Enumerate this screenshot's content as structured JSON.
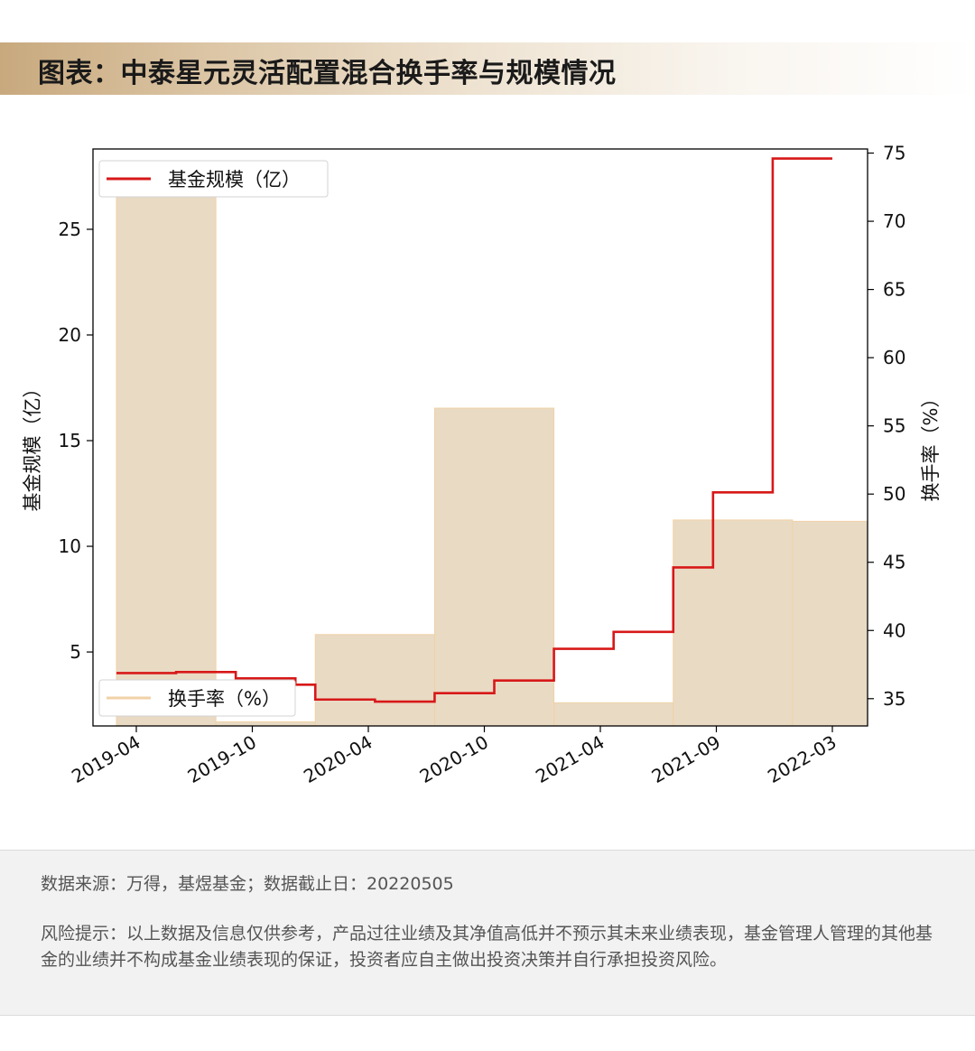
{
  "title": "图表：中泰星元灵活配置混合换手率与规模情况",
  "colors": {
    "scale_line": "#d71818",
    "turnover_fill": "#e9dac4",
    "turnover_edge": "#f0d2a6",
    "title_accent": "#c8a97e"
  },
  "chart_data": {
    "type": "bar+line",
    "x_tick_labels": [
      "2019-04",
      "2019-10",
      "2020-04",
      "2020-10",
      "2021-04",
      "2021-09",
      "2022-03"
    ],
    "left_axis": {
      "label": "基金规模（亿）",
      "ticks": [
        5,
        10,
        15,
        20,
        25
      ],
      "range": [
        1.5,
        28.8
      ]
    },
    "right_axis": {
      "label": "换手率（%）",
      "ticks": [
        35,
        40,
        45,
        50,
        55,
        60,
        65,
        70,
        75
      ],
      "range": [
        33.0,
        75.3
      ]
    },
    "turnover_series": {
      "name": "换手率（%）",
      "periods": [
        {
          "start": "2019-03",
          "end": "2019-08",
          "value": 72.5
        },
        {
          "start": "2019-08",
          "end": "2020-01",
          "value": 33.3
        },
        {
          "start": "2020-01",
          "end": "2020-07",
          "value": 39.7
        },
        {
          "start": "2020-07",
          "end": "2021-01",
          "value": 56.3
        },
        {
          "start": "2021-01",
          "end": "2021-07",
          "value": 34.7
        },
        {
          "start": "2021-07",
          "end": "2022-01",
          "value": 48.1
        },
        {
          "start": "2022-01",
          "end": "2022-05",
          "value": 48.0
        }
      ]
    },
    "scale_series": {
      "name": "基金规模（亿）",
      "points": [
        {
          "date": "2019-03",
          "value": 4.0
        },
        {
          "date": "2019-06",
          "value": 4.05
        },
        {
          "date": "2019-09",
          "value": 3.75
        },
        {
          "date": "2019-12",
          "value": 3.45
        },
        {
          "date": "2020-01",
          "value": 2.75
        },
        {
          "date": "2020-04",
          "value": 2.65
        },
        {
          "date": "2020-07",
          "value": 3.05
        },
        {
          "date": "2020-10",
          "value": 3.65
        },
        {
          "date": "2021-01",
          "value": 5.15
        },
        {
          "date": "2021-04",
          "value": 5.95
        },
        {
          "date": "2021-07",
          "value": 9.0
        },
        {
          "date": "2021-09",
          "value": 12.55
        },
        {
          "date": "2021-12",
          "value": 28.35
        },
        {
          "date": "2022-03",
          "value": 28.35
        }
      ]
    },
    "legend_scale": {
      "label": "基金规模（亿）",
      "placement": "top-left"
    },
    "legend_turnover": {
      "label": "换手率（%）",
      "placement": "bottom-left"
    },
    "grid": false
  },
  "footer": {
    "source": "数据来源：万得，基煜基金；数据截止日：20220505",
    "risk": "风险提示：以上数据及信息仅供参考，产品过往业绩及其净值高低并不预示其未来业绩表现，基金管理人管理的其他基金的业绩并不构成基金业绩表现的保证，投资者应自主做出投资决策并自行承担投资风险。"
  }
}
